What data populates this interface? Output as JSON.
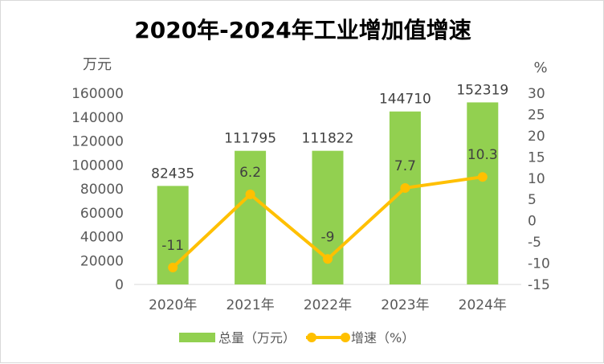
{
  "chart_data": {
    "type": "bar+line",
    "title": "2020年-2024年工业增加值增速",
    "categories": [
      "2020年",
      "2021年",
      "2022年",
      "2023年",
      "2024年"
    ],
    "series": [
      {
        "name": "总量（万元）",
        "type": "bar",
        "axis": "left",
        "color": "#92d050",
        "values": [
          82435,
          111795,
          111822,
          144710,
          152319
        ],
        "labels": [
          "82435",
          "111795",
          "111822",
          "144710",
          "152319"
        ]
      },
      {
        "name": "增速（%）",
        "type": "line",
        "axis": "right",
        "color": "#ffc000",
        "values": [
          -11,
          6.2,
          -9,
          7.7,
          10.3
        ],
        "labels": [
          "-11",
          "6.2",
          "-9",
          "7.7",
          "10.3"
        ]
      }
    ],
    "left_axis": {
      "unit": "万元",
      "min": 0,
      "max": 160000,
      "step": 20000,
      "ticks": [
        "0",
        "20000",
        "40000",
        "60000",
        "80000",
        "100000",
        "120000",
        "140000",
        "160000"
      ]
    },
    "right_axis": {
      "unit": "%",
      "min": -15,
      "max": 30,
      "step": 5,
      "ticks": [
        "-15",
        "-10",
        "-5",
        "0",
        "5",
        "10",
        "15",
        "20",
        "25",
        "30"
      ]
    },
    "legend": "bottom",
    "grid": false
  }
}
